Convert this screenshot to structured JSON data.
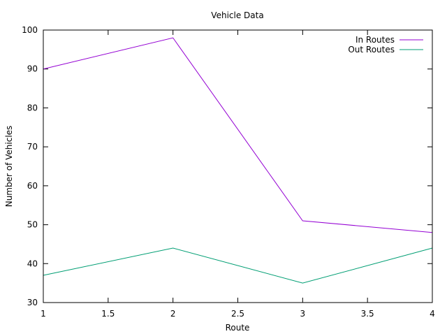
{
  "chart_data": {
    "type": "line",
    "title": "Vehicle Data",
    "xlabel": "Route",
    "ylabel": "Number of Vehicles",
    "xlim": [
      1,
      4
    ],
    "ylim": [
      30,
      100
    ],
    "x_ticks": [
      1,
      1.5,
      2,
      2.5,
      3,
      3.5,
      4
    ],
    "x_tick_labels": [
      "1",
      "1.5",
      "2",
      "2.5",
      "3",
      "3.5",
      "4"
    ],
    "y_ticks": [
      30,
      40,
      50,
      60,
      70,
      80,
      90,
      100
    ],
    "y_tick_labels": [
      "30",
      "40",
      "50",
      "60",
      "70",
      "80",
      "90",
      "100"
    ],
    "grid": false,
    "legend_position": "top-right",
    "series": [
      {
        "name": "In Routes",
        "color": "#9400d3",
        "x": [
          1,
          2,
          3,
          4
        ],
        "y": [
          90,
          98,
          51,
          48
        ]
      },
      {
        "name": "Out Routes",
        "color": "#009e73",
        "x": [
          1,
          2,
          3,
          4
        ],
        "y": [
          37,
          44,
          35,
          44
        ]
      }
    ]
  }
}
